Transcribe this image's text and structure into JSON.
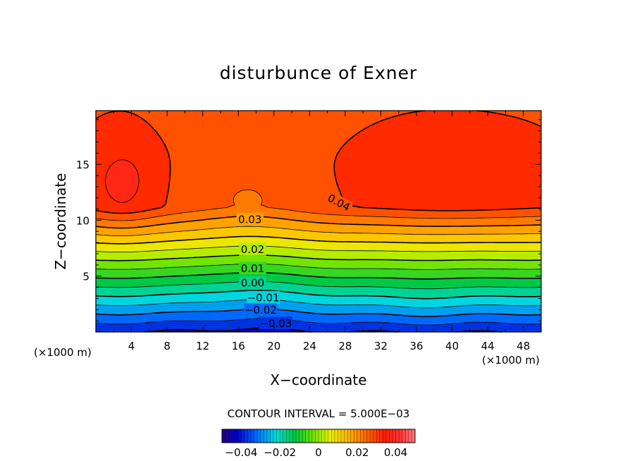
{
  "chart_data": {
    "type": "contour",
    "title": "disturbunce of Exner",
    "xlabel": "X−coordinate",
    "ylabel": "Z−coordinate",
    "x_unit_left": "(×1000 m)",
    "x_unit_right": "(×1000 m)",
    "xlim": [
      0,
      50
    ],
    "ylim": [
      0,
      19.8
    ],
    "x_ticks": [
      4,
      8,
      12,
      16,
      20,
      24,
      28,
      32,
      36,
      40,
      44,
      48
    ],
    "x_tick_labels": [
      "4",
      "8",
      "12",
      "16",
      "20",
      "24",
      "28",
      "32",
      "36",
      "40",
      "44",
      "48"
    ],
    "y_ticks": [
      5,
      10,
      15
    ],
    "y_tick_labels": [
      "5",
      "10",
      "15"
    ],
    "contour_interval_text": "CONTOUR INTERVAL = 5.000E−03",
    "contour_interval": 0.005,
    "levels_min": -0.045,
    "levels_max": 0.045,
    "contour_labels": [
      {
        "text": "0.04",
        "x": 27.3,
        "z": 11.6,
        "angle": 28
      },
      {
        "text": "0.03",
        "x": 17.3,
        "z": 10.1,
        "angle": 0
      },
      {
        "text": "0.02",
        "x": 17.6,
        "z": 7.4,
        "angle": 0
      },
      {
        "text": "0.01",
        "x": 17.6,
        "z": 5.7,
        "angle": 0
      },
      {
        "text": "0.00",
        "x": 17.6,
        "z": 4.4,
        "angle": 0
      },
      {
        "text": "−0.01",
        "x": 18.8,
        "z": 3.1,
        "angle": 0
      },
      {
        "text": "−0.02",
        "x": 18.5,
        "z": 2.0,
        "angle": 0
      },
      {
        "text": "−0.03",
        "x": 20.2,
        "z": 0.8,
        "angle": 0
      }
    ],
    "colorbar": {
      "tick_labels": [
        "−0.04",
        "−0.02",
        "0",
        "0.02",
        "0.04"
      ],
      "tick_values": [
        -0.04,
        -0.02,
        0,
        0.02,
        0.04
      ],
      "range": [
        -0.05,
        0.05
      ]
    }
  },
  "colors": {
    "background": "#ffffff",
    "axis": "#000000"
  }
}
